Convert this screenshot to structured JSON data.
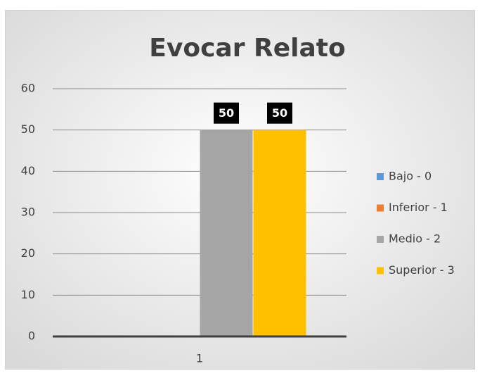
{
  "chart_data": {
    "type": "bar",
    "title": "Evocar Relato",
    "categories": [
      "1"
    ],
    "series": [
      {
        "name": "Bajo - 0",
        "color": "#5b9bd5",
        "values": [
          0
        ]
      },
      {
        "name": "Inferior - 1",
        "color": "#ed7d31",
        "values": [
          0
        ]
      },
      {
        "name": "Medio - 2",
        "color": "#a5a5a5",
        "values": [
          50
        ]
      },
      {
        "name": "Superior - 3",
        "color": "#ffc000",
        "values": [
          50
        ]
      }
    ],
    "ylim": [
      0,
      60
    ],
    "yticks": [
      0,
      10,
      20,
      30,
      40,
      50,
      60
    ],
    "grid": true,
    "legend": "right"
  }
}
